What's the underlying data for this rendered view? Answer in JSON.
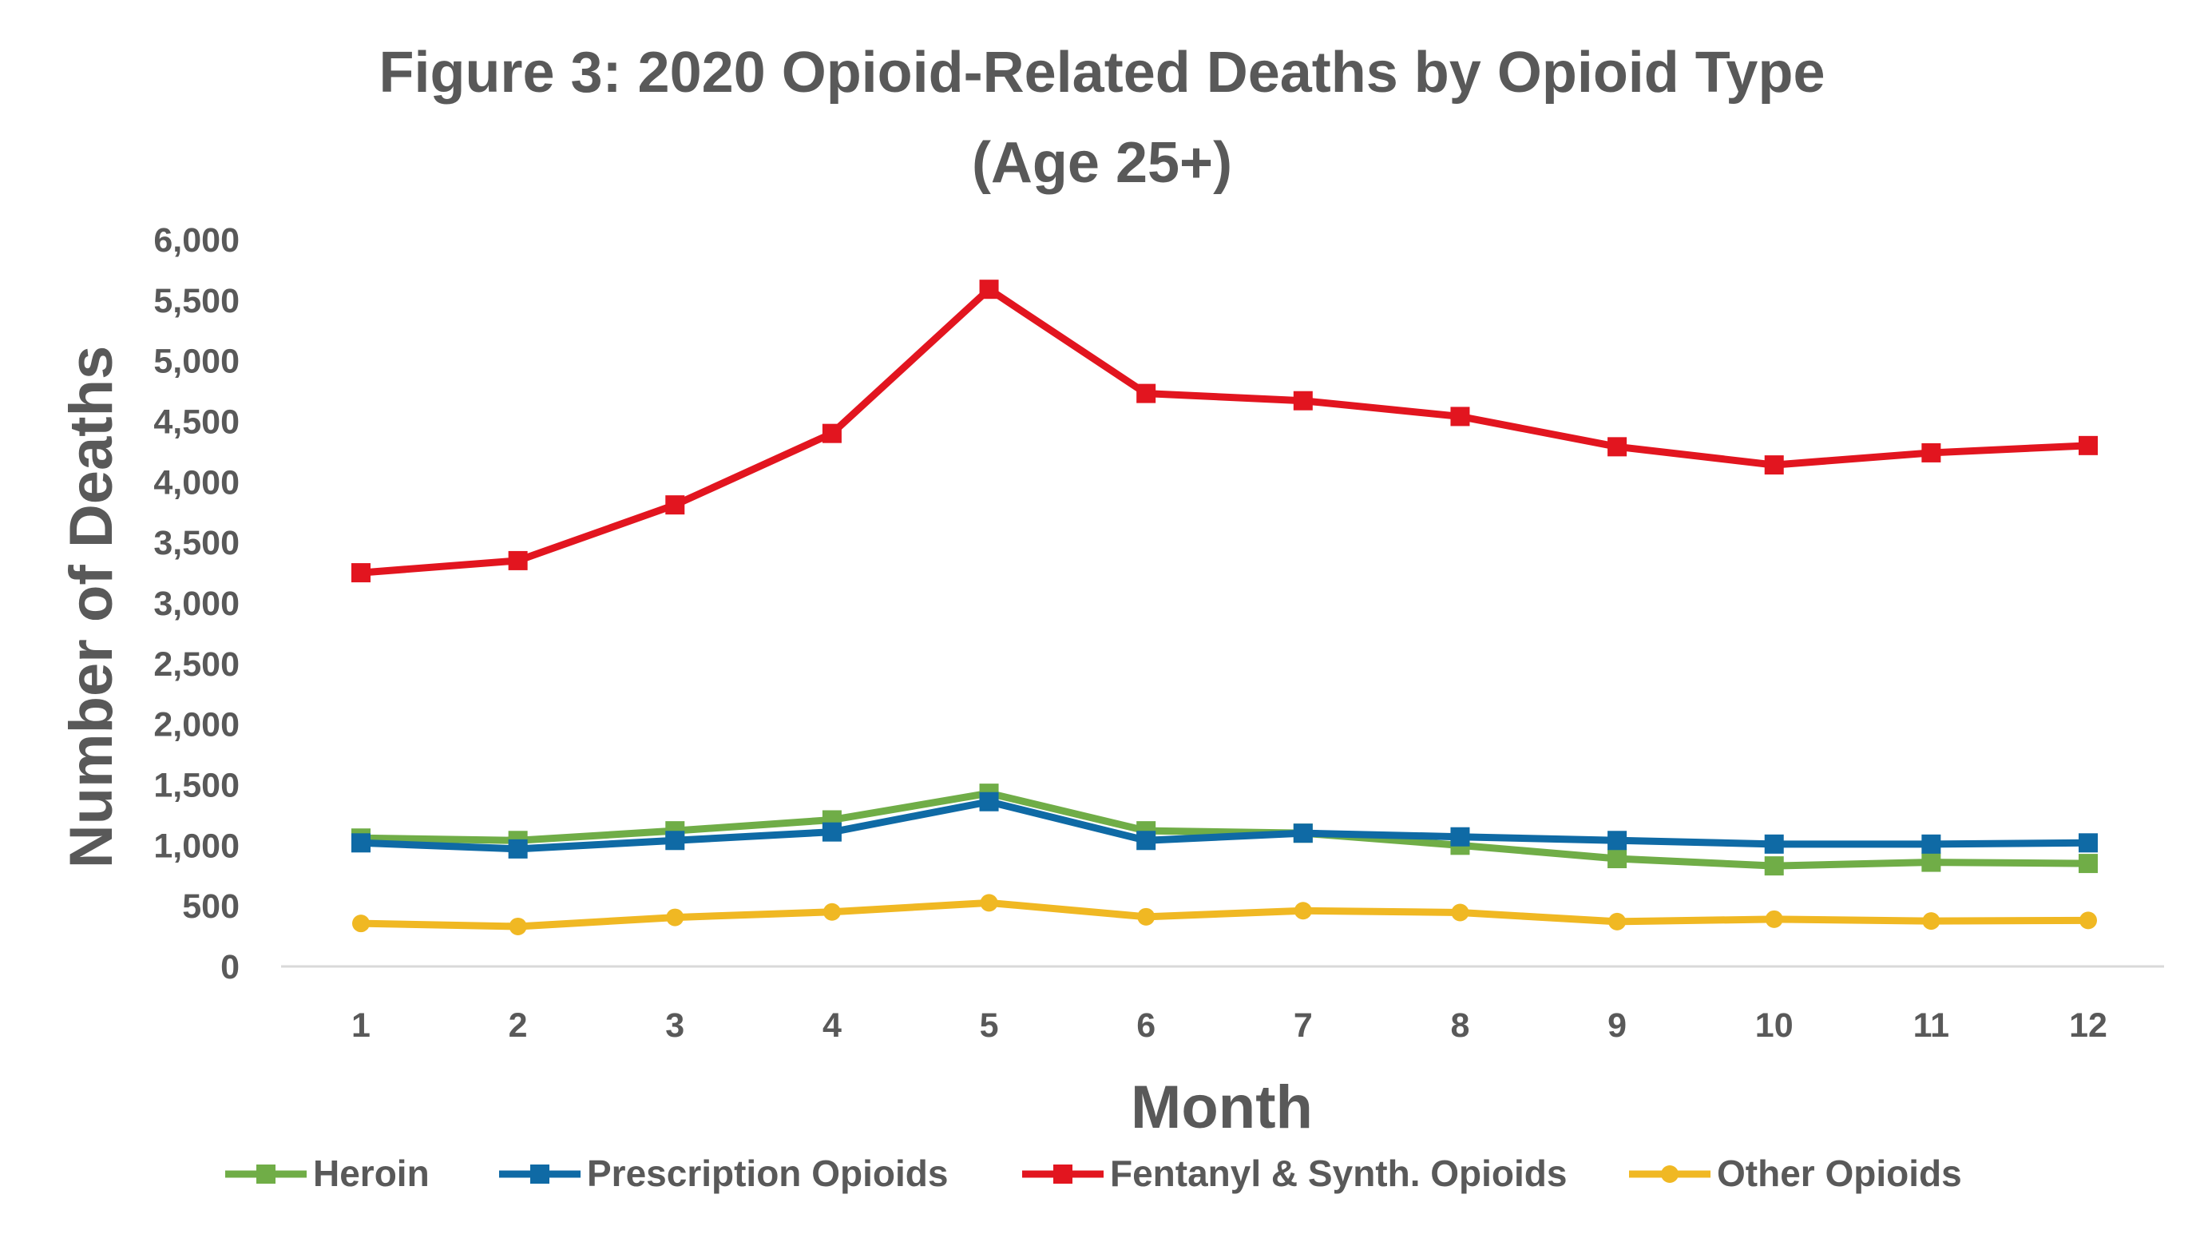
{
  "chart_data": {
    "type": "line",
    "title": "Figure 3: 2020 Opioid-Related Deaths by Opioid Type",
    "subtitle": "(Age 25+)",
    "xlabel": "Month",
    "ylabel": "Number of Deaths",
    "x": [
      1,
      2,
      3,
      4,
      5,
      6,
      7,
      8,
      9,
      10,
      11,
      12
    ],
    "x_tick_labels": [
      "1",
      "2",
      "3",
      "4",
      "5",
      "6",
      "7",
      "8",
      "9",
      "10",
      "11",
      "12"
    ],
    "ylim": [
      0,
      6000
    ],
    "y_ticks": [
      0,
      500,
      1000,
      1500,
      2000,
      2500,
      3000,
      3500,
      4000,
      4500,
      5000,
      5500,
      6000
    ],
    "y_tick_labels": [
      "0",
      "500",
      "1,000",
      "1,500",
      "2,000",
      "2,500",
      "3,000",
      "3,500",
      "4,000",
      "4,500",
      "5,000",
      "5,500",
      "6,000"
    ],
    "grid": false,
    "legend_position": "bottom",
    "series": [
      {
        "name": "Heroin",
        "color": "#70AD47",
        "marker": "square",
        "values": [
          1060,
          1040,
          1120,
          1210,
          1430,
          1120,
          1100,
          1000,
          890,
          830,
          860,
          850
        ]
      },
      {
        "name": "Prescription Opioids",
        "color": "#0F6AA5",
        "marker": "square",
        "values": [
          1020,
          970,
          1040,
          1110,
          1360,
          1040,
          1100,
          1070,
          1040,
          1010,
          1010,
          1020
        ]
      },
      {
        "name": "Fentanyl & Synth. Opioids",
        "color": "#E2151F",
        "marker": "square",
        "values": [
          3250,
          3350,
          3810,
          4400,
          5590,
          4730,
          4670,
          4540,
          4290,
          4140,
          4240,
          4300
        ]
      },
      {
        "name": "Other Opioids",
        "color": "#F0B823",
        "marker": "circle",
        "values": [
          355,
          330,
          405,
          450,
          525,
          410,
          460,
          445,
          370,
          390,
          375,
          380
        ]
      }
    ]
  }
}
